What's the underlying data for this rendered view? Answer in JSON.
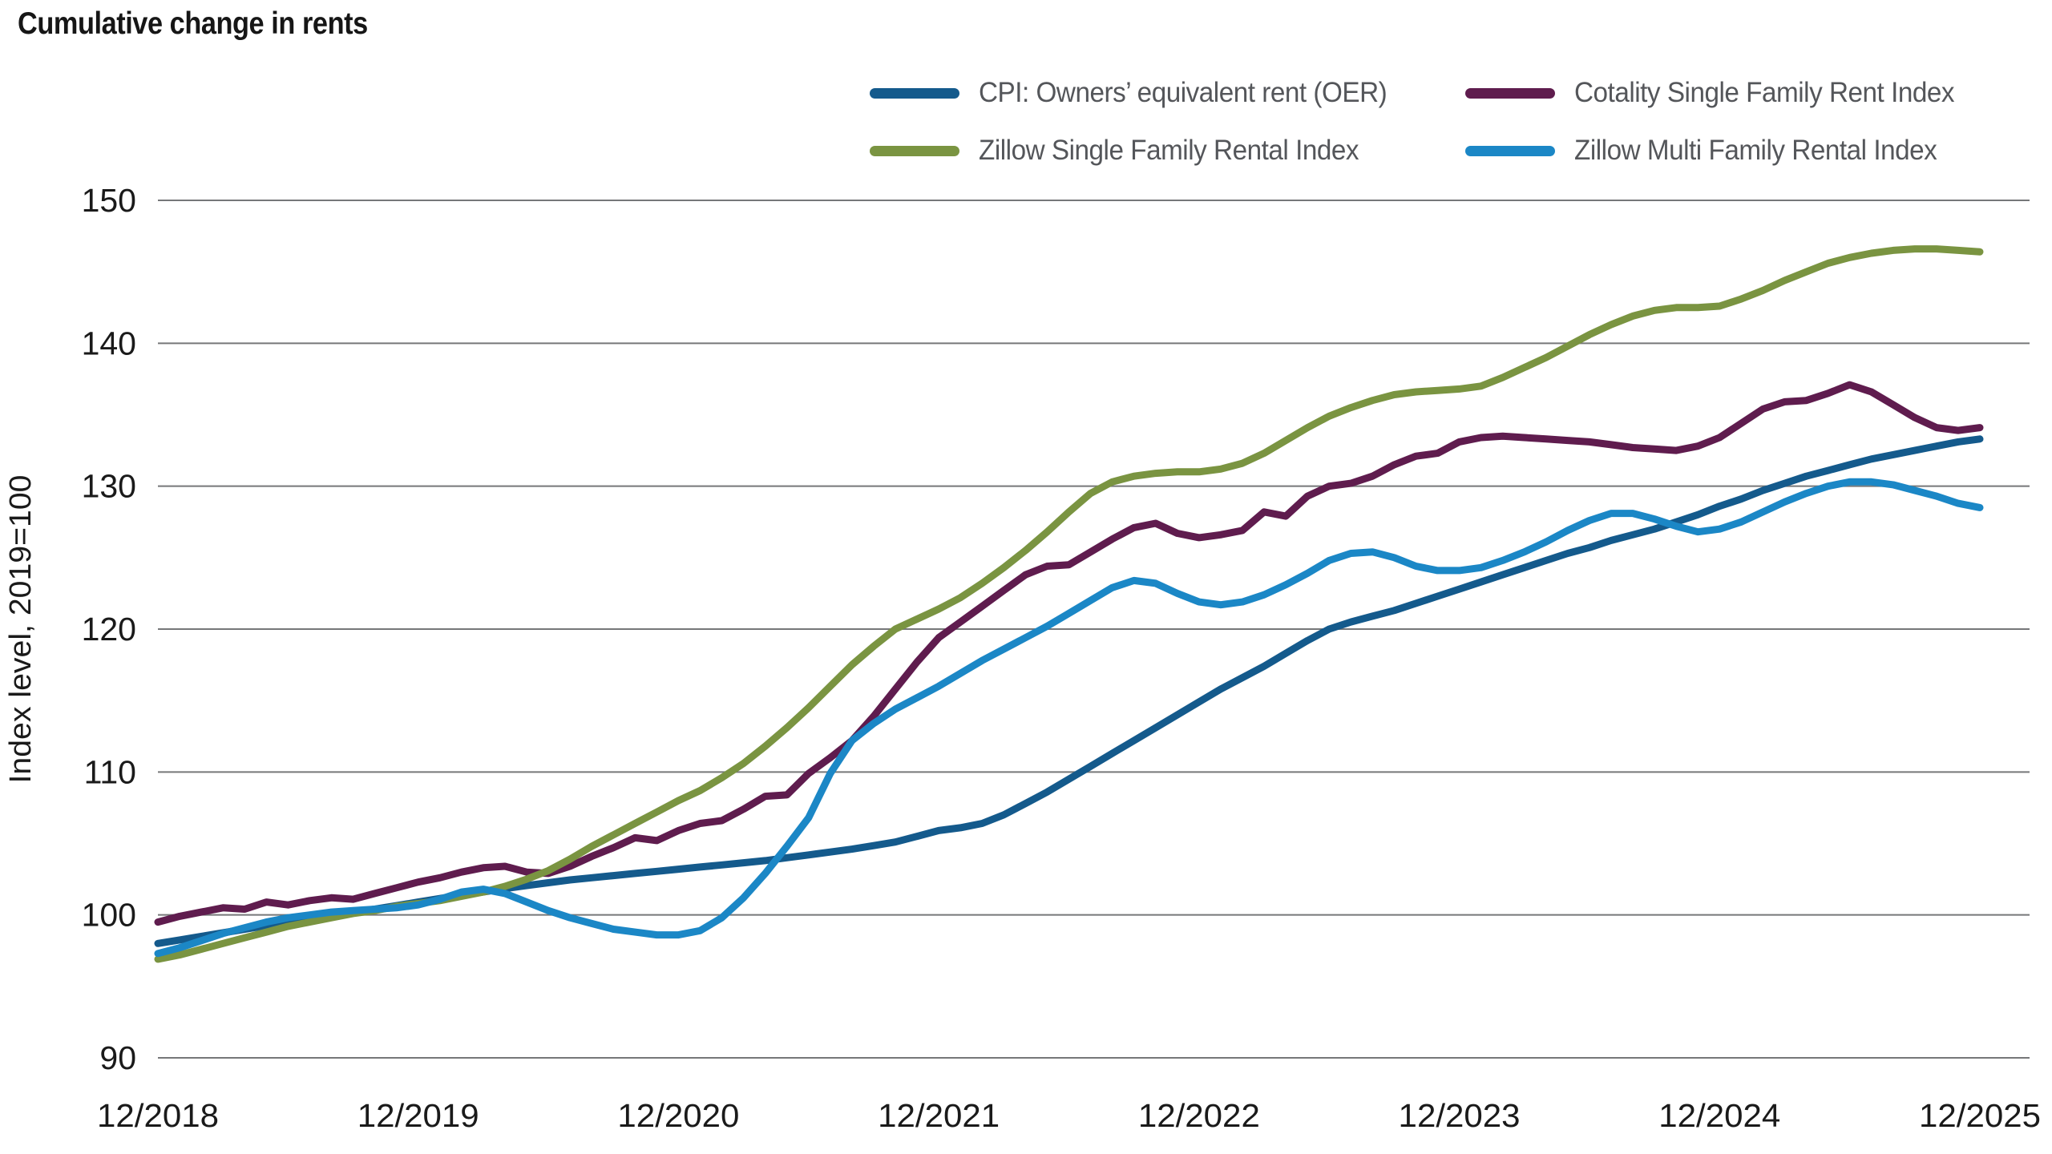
{
  "page": {
    "title": "Cumulative change in rents"
  },
  "chart_data": {
    "type": "line",
    "title": "Cumulative change in rents",
    "xlabel": "",
    "ylabel": "Index level, 2019=100",
    "ylim": [
      90,
      150
    ],
    "y_ticks": [
      150,
      140,
      130,
      120,
      110,
      100,
      90
    ],
    "x_tick_labels": [
      "12/2018",
      "12/2019",
      "12/2020",
      "12/2021",
      "12/2022",
      "12/2023",
      "12/2024",
      "12/2025"
    ],
    "x_frequency": "monthly",
    "x_start": "12/2018",
    "x_end": "12/2025",
    "grid": "horizontal",
    "legend_position": "top",
    "gridline_color": "#767779",
    "series": [
      {
        "name": "CPI: Owners’ equivalent rent (OER)",
        "color": "#145a8c",
        "values": [
          98.0,
          98.25,
          98.5,
          98.75,
          99.0,
          99.25,
          99.5,
          99.75,
          99.95,
          100.2,
          100.4,
          100.65,
          100.9,
          101.15,
          101.4,
          101.6,
          101.85,
          102.05,
          102.25,
          102.45,
          102.6,
          102.75,
          102.9,
          103.05,
          103.2,
          103.35,
          103.5,
          103.65,
          103.8,
          104.0,
          104.2,
          104.4,
          104.6,
          104.85,
          105.1,
          105.5,
          105.9,
          106.1,
          106.4,
          107.0,
          107.8,
          108.6,
          109.5,
          110.4,
          111.3,
          112.2,
          113.1,
          114.0,
          114.9,
          115.8,
          116.6,
          117.4,
          118.3,
          119.2,
          120.0,
          120.5,
          120.9,
          121.3,
          121.8,
          122.3,
          122.8,
          123.3,
          123.8,
          124.3,
          124.8,
          125.3,
          125.7,
          126.2,
          126.6,
          127.0,
          127.5,
          128.0,
          128.6,
          129.1,
          129.7,
          130.2,
          130.7,
          131.1,
          131.5,
          131.9,
          132.2,
          132.5,
          132.8,
          133.1,
          133.3
        ]
      },
      {
        "name": "Cotality Single Family Rent Index",
        "color": "#5f1c4e",
        "values": [
          99.5,
          99.9,
          100.2,
          100.5,
          100.4,
          100.9,
          100.7,
          101.0,
          101.2,
          101.1,
          101.5,
          101.9,
          102.3,
          102.6,
          103.0,
          103.3,
          103.4,
          103.0,
          102.9,
          103.4,
          104.1,
          104.7,
          105.4,
          105.2,
          105.9,
          106.4,
          106.6,
          107.4,
          108.3,
          108.4,
          109.9,
          111.0,
          112.2,
          113.9,
          115.8,
          117.7,
          119.4,
          120.5,
          121.6,
          122.7,
          123.8,
          124.4,
          124.5,
          125.4,
          126.3,
          127.1,
          127.4,
          126.7,
          126.4,
          126.6,
          126.9,
          128.2,
          127.9,
          129.3,
          130.0,
          130.2,
          130.7,
          131.5,
          132.1,
          132.3,
          133.1,
          133.4,
          133.5,
          133.4,
          133.3,
          133.2,
          133.1,
          132.9,
          132.7,
          132.6,
          132.5,
          132.8,
          133.4,
          134.4,
          135.4,
          135.9,
          136.0,
          136.5,
          137.1,
          136.6,
          135.7,
          134.8,
          134.1,
          133.9,
          134.1
        ]
      },
      {
        "name": "Zillow Single Family Rental Index",
        "color": "#7a9441",
        "values": [
          96.9,
          97.2,
          97.6,
          98.0,
          98.4,
          98.8,
          99.2,
          99.5,
          99.8,
          100.1,
          100.3,
          100.6,
          100.8,
          101.0,
          101.3,
          101.6,
          102.0,
          102.5,
          103.1,
          103.9,
          104.8,
          105.6,
          106.4,
          107.2,
          108.0,
          108.7,
          109.6,
          110.6,
          111.8,
          113.1,
          114.5,
          116.0,
          117.5,
          118.8,
          120.0,
          120.7,
          121.4,
          122.2,
          123.2,
          124.3,
          125.5,
          126.8,
          128.2,
          129.5,
          130.3,
          130.7,
          130.9,
          131.0,
          131.0,
          131.2,
          131.6,
          132.3,
          133.2,
          134.1,
          134.9,
          135.5,
          136.0,
          136.4,
          136.6,
          136.7,
          136.8,
          137.0,
          137.6,
          138.3,
          139.0,
          139.8,
          140.6,
          141.3,
          141.9,
          142.3,
          142.5,
          142.5,
          142.6,
          143.1,
          143.7,
          144.4,
          145.0,
          145.6,
          146.0,
          146.3,
          146.5,
          146.6,
          146.6,
          146.5,
          146.4
        ]
      },
      {
        "name": "Zillow Multi Family Rental Index",
        "color": "#1b87c6",
        "values": [
          97.3,
          97.7,
          98.2,
          98.7,
          99.1,
          99.5,
          99.8,
          100.0,
          100.2,
          100.3,
          100.4,
          100.5,
          100.7,
          101.1,
          101.6,
          101.8,
          101.5,
          100.9,
          100.3,
          99.8,
          99.4,
          99.0,
          98.8,
          98.6,
          98.6,
          98.9,
          99.8,
          101.2,
          102.9,
          104.8,
          106.8,
          109.9,
          112.2,
          113.4,
          114.4,
          115.2,
          116.0,
          116.9,
          117.8,
          118.6,
          119.4,
          120.2,
          121.1,
          122.0,
          122.9,
          123.4,
          123.2,
          122.5,
          121.9,
          121.7,
          121.9,
          122.4,
          123.1,
          123.9,
          124.8,
          125.3,
          125.4,
          125.0,
          124.4,
          124.1,
          124.1,
          124.3,
          124.8,
          125.4,
          126.1,
          126.9,
          127.6,
          128.1,
          128.1,
          127.7,
          127.2,
          126.8,
          127.0,
          127.5,
          128.2,
          128.9,
          129.5,
          130.0,
          130.3,
          130.3,
          130.1,
          129.7,
          129.3,
          128.8,
          128.5
        ]
      }
    ]
  },
  "legend": {
    "items": [
      {
        "label": "CPI: Owners’ equivalent rent (OER)",
        "color": "#145a8c"
      },
      {
        "label": "Cotality Single Family Rent Index",
        "color": "#5f1c4e"
      },
      {
        "label": "Zillow Single Family Rental Index",
        "color": "#7a9441"
      },
      {
        "label": "Zillow Multi Family Rental Index",
        "color": "#1b87c6"
      }
    ]
  }
}
